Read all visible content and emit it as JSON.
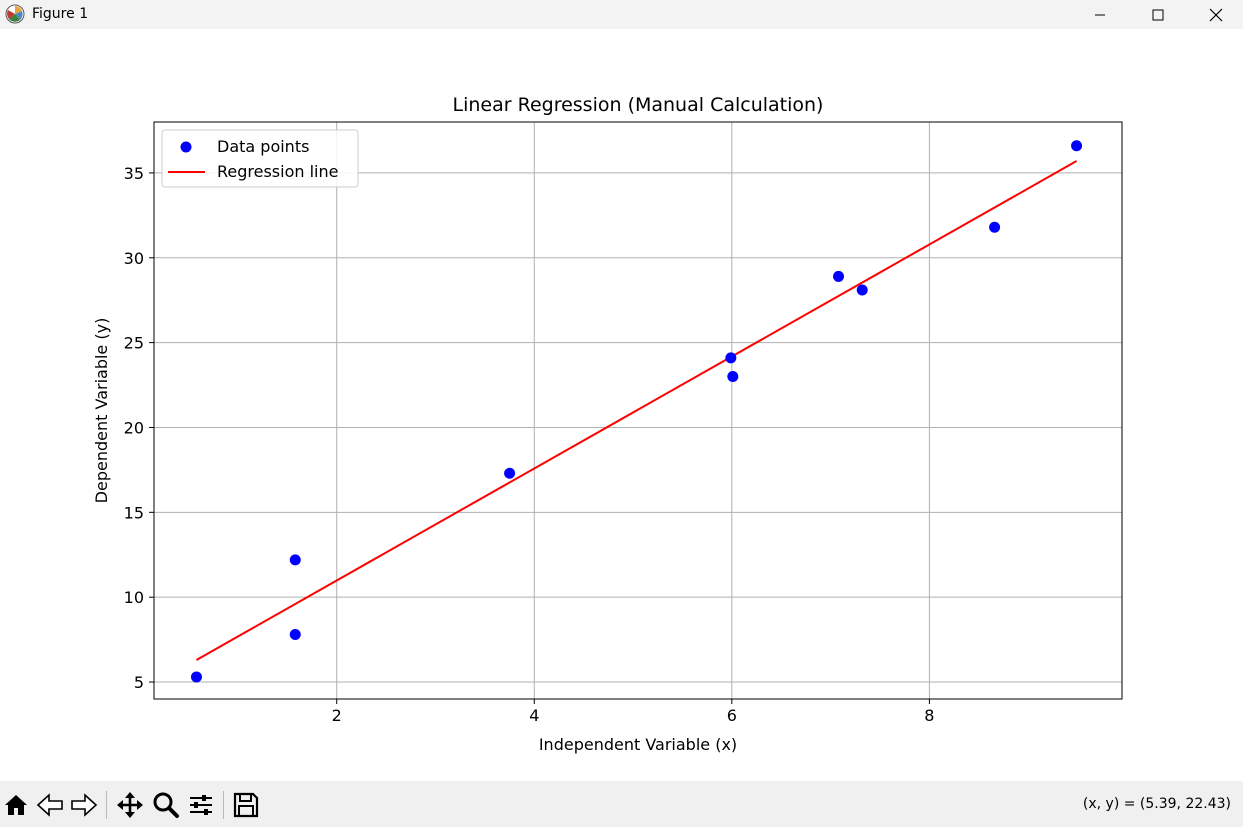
{
  "window": {
    "title": "Figure 1",
    "controls": [
      "minimize",
      "maximize",
      "close"
    ]
  },
  "toolbar": {
    "tools": [
      "home-icon",
      "back-icon",
      "forward-icon",
      "pan-icon",
      "zoom-icon",
      "configure-subplots-icon",
      "save-icon"
    ],
    "coordinates": "(x, y) = (5.39, 22.43)"
  },
  "chart_data": {
    "type": "scatter",
    "title": "Linear Regression (Manual Calculation)",
    "xlabel": "Independent Variable (x)",
    "ylabel": "Dependent Variable (y)",
    "xlim": [
      0.15,
      9.95
    ],
    "ylim": [
      4.0,
      38.0
    ],
    "xticks": [
      2,
      4,
      6,
      8
    ],
    "yticks": [
      5,
      10,
      15,
      20,
      25,
      30,
      35
    ],
    "grid": true,
    "legend_position": "top-left",
    "series": [
      {
        "name": "Data points",
        "kind": "scatter",
        "color": "#0000ff",
        "x": [
          0.58,
          1.58,
          1.58,
          3.75,
          5.99,
          6.01,
          7.08,
          7.32,
          8.66,
          9.49
        ],
        "y": [
          5.3,
          12.2,
          7.8,
          17.3,
          24.1,
          23.0,
          28.9,
          28.1,
          31.8,
          36.6
        ]
      },
      {
        "name": "Regression line",
        "kind": "line",
        "color": "#ff0000",
        "x": [
          0.58,
          9.49
        ],
        "y": [
          6.3,
          35.7
        ]
      }
    ]
  }
}
